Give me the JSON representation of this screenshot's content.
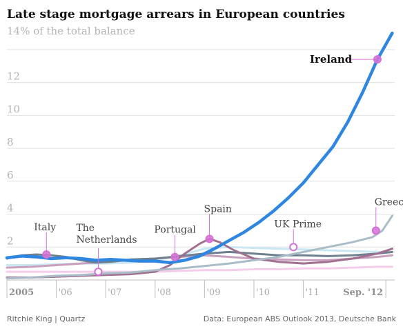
{
  "chart_data": {
    "type": "line",
    "title": "Late stage mortgage arrears in European countries",
    "ylabel": "14% of the total balance",
    "ylim": [
      0,
      15
    ],
    "yticks": [
      {
        "value": 2,
        "label": "2"
      },
      {
        "value": 4,
        "label": "4"
      },
      {
        "value": 6,
        "label": "6"
      },
      {
        "value": 8,
        "label": "8"
      },
      {
        "value": 10,
        "label": "10"
      },
      {
        "value": 12,
        "label": "12"
      }
    ],
    "xlim": [
      2005.0,
      2012.85
    ],
    "xticks": [
      {
        "value": 2005,
        "label": "2005",
        "bold": true
      },
      {
        "value": 2006,
        "label": "'06"
      },
      {
        "value": 2007,
        "label": "'07"
      },
      {
        "value": 2008,
        "label": "'08"
      },
      {
        "value": 2009,
        "label": "'09"
      },
      {
        "value": 2010,
        "label": "'10"
      },
      {
        "value": 2011,
        "label": "'11"
      },
      {
        "value": 2012.67,
        "label": "Sep. '12",
        "bold": true
      }
    ],
    "series": [
      {
        "name": "Ireland",
        "color": "#2f86e0",
        "width": 4.5,
        "x": [
          2005.0,
          2005.3,
          2005.6,
          2005.9,
          2006.2,
          2006.5,
          2006.8,
          2007.1,
          2007.4,
          2007.7,
          2008.0,
          2008.3,
          2008.6,
          2008.9,
          2009.2,
          2009.5,
          2009.8,
          2010.1,
          2010.4,
          2010.7,
          2011.0,
          2011.3,
          2011.6,
          2011.9,
          2012.2,
          2012.5,
          2012.8
        ],
        "y": [
          1.35,
          1.45,
          1.4,
          1.3,
          1.35,
          1.3,
          1.2,
          1.25,
          1.2,
          1.15,
          1.15,
          1.05,
          1.2,
          1.45,
          1.9,
          2.4,
          2.9,
          3.5,
          4.2,
          5.0,
          5.9,
          7.0,
          8.1,
          9.6,
          11.4,
          13.4,
          15.0
        ]
      },
      {
        "name": "Greece",
        "color": "#a9bcc8",
        "width": 3,
        "x": [
          2005.0,
          2005.5,
          2006.0,
          2006.5,
          2007.0,
          2007.5,
          2008.0,
          2008.5,
          2009.0,
          2009.5,
          2010.0,
          2010.5,
          2011.0,
          2011.5,
          2012.0,
          2012.4,
          2012.6,
          2012.8
        ],
        "y": [
          0.1,
          0.15,
          0.25,
          0.3,
          0.4,
          0.45,
          0.6,
          0.7,
          0.85,
          1.0,
          1.2,
          1.4,
          1.7,
          2.0,
          2.3,
          2.6,
          3.0,
          3.9
        ]
      },
      {
        "name": "Spain",
        "color": "#a07090",
        "width": 3,
        "x": [
          2005.0,
          2005.5,
          2006.0,
          2006.5,
          2007.0,
          2007.5,
          2008.0,
          2008.3,
          2008.6,
          2008.9,
          2009.1,
          2009.3,
          2009.6,
          2010.0,
          2010.5,
          2011.0,
          2011.5,
          2012.0,
          2012.5,
          2012.8
        ],
        "y": [
          0.15,
          0.15,
          0.2,
          0.25,
          0.3,
          0.35,
          0.5,
          0.9,
          1.6,
          2.2,
          2.5,
          2.3,
          1.8,
          1.3,
          1.1,
          1.0,
          1.1,
          1.3,
          1.6,
          1.9
        ]
      },
      {
        "name": "Italy",
        "color": "#6e7f8e",
        "width": 3,
        "x": [
          2005.0,
          2005.3,
          2005.6,
          2005.9,
          2006.2,
          2006.5,
          2006.8,
          2007.1,
          2007.5,
          2008.0,
          2008.5,
          2009.0,
          2009.5,
          2010.0,
          2010.5,
          2011.0,
          2011.5,
          2012.0,
          2012.5,
          2012.8
        ],
        "y": [
          1.3,
          1.5,
          1.55,
          1.5,
          1.4,
          1.2,
          1.05,
          1.1,
          1.25,
          1.3,
          1.45,
          1.6,
          1.7,
          1.6,
          1.5,
          1.5,
          1.45,
          1.5,
          1.6,
          1.7
        ]
      },
      {
        "name": "Portugal",
        "color": "#c8a0be",
        "width": 3,
        "x": [
          2005.0,
          2005.5,
          2006.0,
          2006.5,
          2007.0,
          2007.5,
          2008.0,
          2008.5,
          2009.0,
          2009.5,
          2010.0,
          2010.5,
          2011.0,
          2011.5,
          2012.0,
          2012.5,
          2012.8
        ],
        "y": [
          0.75,
          0.8,
          0.9,
          1.0,
          1.1,
          1.2,
          1.3,
          1.4,
          1.5,
          1.4,
          1.3,
          1.25,
          1.2,
          1.2,
          1.3,
          1.4,
          1.5
        ]
      },
      {
        "name": "UK Prime",
        "color": "#c9e8f4",
        "width": 3,
        "x": [
          2005.0,
          2005.5,
          2006.0,
          2006.5,
          2007.0,
          2007.5,
          2008.0,
          2008.5,
          2009.0,
          2009.5,
          2010.0,
          2010.5,
          2011.0,
          2011.5,
          2012.0,
          2012.5,
          2012.8
        ],
        "y": [
          0.9,
          0.9,
          0.95,
          1.0,
          1.0,
          1.05,
          1.2,
          1.5,
          1.9,
          2.0,
          1.95,
          1.9,
          1.85,
          1.8,
          1.75,
          1.7,
          1.7
        ]
      },
      {
        "name": "The Netherlands",
        "color": "#f3cdea",
        "width": 3,
        "x": [
          2005.0,
          2005.5,
          2006.0,
          2006.5,
          2007.0,
          2007.5,
          2008.0,
          2008.5,
          2009.0,
          2009.5,
          2010.0,
          2010.5,
          2011.0,
          2011.5,
          2012.0,
          2012.5,
          2012.8
        ],
        "y": [
          0.5,
          0.5,
          0.5,
          0.5,
          0.5,
          0.5,
          0.5,
          0.55,
          0.6,
          0.6,
          0.65,
          0.65,
          0.7,
          0.7,
          0.75,
          0.8,
          0.8
        ]
      }
    ],
    "annotations": [
      {
        "text": "Ireland",
        "bold": true,
        "x": 2012.5,
        "y": 13.4,
        "marker": "filled",
        "label_dx": -98,
        "label_dy": 0,
        "leader": "h"
      },
      {
        "text": "Greece",
        "x": 2012.47,
        "y": 3.0,
        "marker": "filled",
        "label_dx": -2,
        "label_dy": -42,
        "leader": "v"
      },
      {
        "text": "Spain",
        "x": 2009.1,
        "y": 2.5,
        "marker": "filled",
        "label_dx": -8,
        "label_dy": -44,
        "leader": "v"
      },
      {
        "text": "UK Prime",
        "x": 2010.8,
        "y": 2.0,
        "marker": "open",
        "label_dx": -28,
        "label_dy": -34,
        "leader": "v"
      },
      {
        "text": "Portugal",
        "x": 2008.4,
        "y": 1.4,
        "marker": "filled",
        "label_dx": -30,
        "label_dy": -40,
        "leader": "v"
      },
      {
        "text": "Italy",
        "x": 2005.8,
        "y": 1.55,
        "marker": "filled",
        "label_dx": -18,
        "label_dy": -40,
        "leader": "v"
      },
      {
        "text": "The Netherlands",
        "lines": [
          "The",
          "Netherlands"
        ],
        "x": 2006.85,
        "y": 0.5,
        "marker": "open",
        "label_dx": -32,
        "label_dy": -64,
        "leader": "v"
      }
    ]
  },
  "footer": {
    "left": "Ritchie King | Quartz",
    "right": "Data: European ABS Outlook 2013, Deutsche Bank"
  },
  "colors": {
    "annotation_marker": "#d670d6",
    "grid": "#e0e0e0",
    "axis": "#bdbdbd"
  }
}
